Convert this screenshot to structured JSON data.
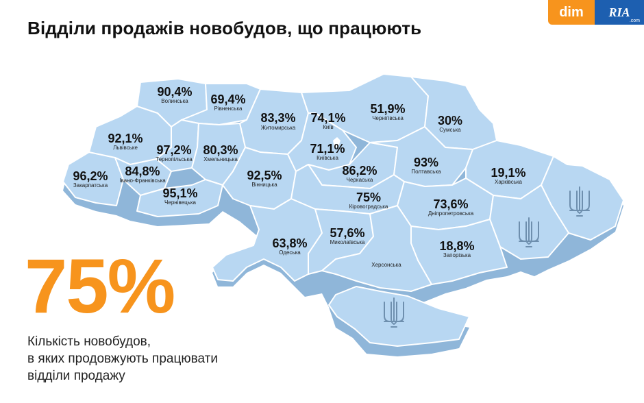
{
  "title": "Відділи продажів новобудов, що працюють",
  "logo": {
    "dim": "dim",
    "ria": "RIA",
    "ria_suffix": ".com"
  },
  "big_stat": "75%",
  "caption_lines": [
    "Кількість новобудов,",
    "в яких продовжують працювати",
    "відділи продажу"
  ],
  "colors": {
    "accent": "#f7941d",
    "map_fill": "#b8d7f2",
    "map_side": "#8fb6d9",
    "border": "#ffffff"
  },
  "icons": [
    "trident-icon-crimea",
    "trident-icon-donetsk",
    "trident-icon-luhansk",
    "kyiv-city-marker-icon"
  ],
  "regions": [
    {
      "id": "volynska",
      "pct": "90,4%",
      "name": "Волинська"
    },
    {
      "id": "rivnenska",
      "pct": "69,4%",
      "name": "Рівненська"
    },
    {
      "id": "zhytomyrska",
      "pct": "83,3%",
      "name": "Житомирська"
    },
    {
      "id": "kyiv",
      "pct": "74,1%",
      "name": "Київ"
    },
    {
      "id": "chernihivska",
      "pct": "51,9%",
      "name": "Чернігівська"
    },
    {
      "id": "sumska",
      "pct": "30%",
      "name": "Сумська"
    },
    {
      "id": "lvivska",
      "pct": "92,1%",
      "name": "Львівське"
    },
    {
      "id": "ternopilska",
      "pct": "97,2%",
      "name": "Тернопільська"
    },
    {
      "id": "khmelnytska",
      "pct": "80,3%",
      "name": "Хмельницька"
    },
    {
      "id": "kyivska",
      "pct": "71,1%",
      "name": "Київська"
    },
    {
      "id": "poltavska",
      "pct": "93%",
      "name": "Полтавська"
    },
    {
      "id": "kharkivska",
      "pct": "19,1%",
      "name": "Харківська"
    },
    {
      "id": "zakarpatska",
      "pct": "96,2%",
      "name": "Закарпатська"
    },
    {
      "id": "ivano-frankivska",
      "pct": "84,8%",
      "name": "Івано-Франківська"
    },
    {
      "id": "vinnytska",
      "pct": "92,5%",
      "name": "Вінницька"
    },
    {
      "id": "cherkaska",
      "pct": "86,2%",
      "name": "Черкаська"
    },
    {
      "id": "chernivetska",
      "pct": "95,1%",
      "name": "Чернівецька"
    },
    {
      "id": "kirovohradska",
      "pct": "75%",
      "name": "Кіровоградська"
    },
    {
      "id": "dnipropetrovska",
      "pct": "73,6%",
      "name": "Дніпропетровська"
    },
    {
      "id": "odeska",
      "pct": "63,8%",
      "name": "Одеська"
    },
    {
      "id": "mykolaivska",
      "pct": "57,6%",
      "name": "Миколаївська"
    },
    {
      "id": "zaporizka",
      "pct": "18,8%",
      "name": "Запорізька"
    },
    {
      "id": "khersonska",
      "pct": "",
      "name": "Херсонська"
    }
  ]
}
